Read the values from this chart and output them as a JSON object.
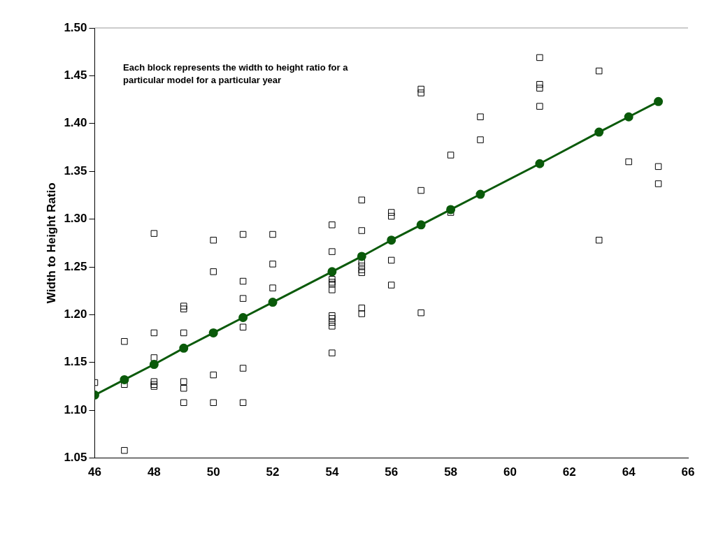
{
  "chart_data": {
    "type": "scatter",
    "ylabel": "Width to Height Ratio",
    "xlim": [
      46,
      66
    ],
    "xticks": [
      46,
      48,
      50,
      52,
      54,
      56,
      58,
      60,
      62,
      64,
      66
    ],
    "ylim": [
      1.05,
      1.5
    ],
    "yticks": [
      1.05,
      {
        "value": 1.1,
        "label": "1.10"
      },
      1.15,
      {
        "value": 1.2,
        "label": "1.20"
      },
      1.25,
      {
        "value": 1.3,
        "label": "1.30"
      },
      1.35,
      {
        "value": 1.4,
        "label": "1.40"
      },
      1.45,
      {
        "value": 1.5,
        "label": "1.50"
      }
    ],
    "grid": false,
    "legend": false,
    "annotations": [
      "Each block represents the width to height ratio for a particular model for a particular year"
    ],
    "series": [
      {
        "color": "#000000",
        "marker": "square",
        "x": [
          46,
          47,
          47,
          47,
          48,
          48,
          48,
          48,
          48,
          48,
          49,
          49,
          49,
          49,
          49,
          49,
          50,
          50,
          50,
          50,
          50,
          51,
          51,
          51,
          51,
          51,
          51,
          52,
          52,
          52,
          54,
          54,
          54,
          54,
          54,
          54,
          54,
          54,
          54,
          54,
          54,
          55,
          55,
          55,
          55,
          55,
          55,
          55,
          55,
          56,
          56,
          56,
          56,
          57,
          57,
          57,
          57,
          58,
          58,
          59,
          59,
          61,
          61,
          61,
          61,
          63,
          63,
          64,
          65,
          65
        ],
        "values": [
          1.129,
          1.172,
          1.127,
          1.058,
          1.285,
          1.181,
          1.155,
          1.13,
          1.127,
          1.125,
          1.209,
          1.206,
          1.181,
          1.13,
          1.123,
          1.108,
          1.278,
          1.245,
          1.181,
          1.137,
          1.108,
          1.284,
          1.235,
          1.217,
          1.187,
          1.144,
          1.108,
          1.284,
          1.253,
          1.228,
          1.294,
          1.266,
          1.237,
          1.234,
          1.232,
          1.226,
          1.199,
          1.196,
          1.192,
          1.188,
          1.16,
          1.32,
          1.288,
          1.255,
          1.251,
          1.247,
          1.244,
          1.207,
          1.201,
          1.307,
          1.303,
          1.257,
          1.231,
          1.436,
          1.432,
          1.33,
          1.202,
          1.367,
          1.307,
          1.407,
          1.383,
          1.469,
          1.441,
          1.437,
          1.418,
          1.455,
          1.278,
          1.36,
          1.355,
          1.337
        ]
      },
      {
        "type": "line",
        "color": "#0a5a0a",
        "marker": "circle",
        "line_style": "solid",
        "x": [
          46,
          47,
          48,
          49,
          50,
          51,
          52,
          54,
          55,
          56,
          57,
          58,
          59,
          61,
          63,
          64,
          65
        ],
        "values": [
          1.116,
          1.132,
          1.148,
          1.165,
          1.181,
          1.197,
          1.213,
          1.245,
          1.261,
          1.278,
          1.294,
          1.31,
          1.326,
          1.358,
          1.391,
          1.407,
          1.423
        ]
      }
    ]
  }
}
